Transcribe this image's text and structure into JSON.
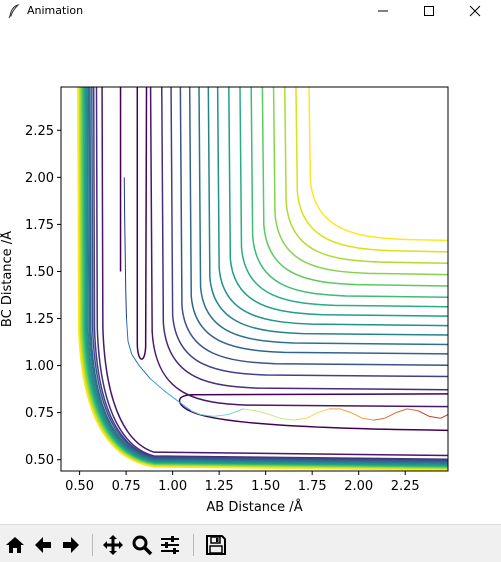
{
  "window": {
    "title": "Animation",
    "minimize_glyph": "—",
    "maximize_glyph": "☐",
    "close_glyph": "✕"
  },
  "toolbar": {
    "buttons": [
      {
        "name": "home",
        "icon": "home-icon"
      },
      {
        "name": "back",
        "icon": "back-arrow-icon"
      },
      {
        "name": "forward",
        "icon": "forward-arrow-icon"
      },
      {
        "name": "pan",
        "icon": "pan-move-icon"
      },
      {
        "name": "zoom",
        "icon": "zoom-magnifier-icon"
      },
      {
        "name": "configure-subplots",
        "icon": "subplots-sliders-icon"
      },
      {
        "name": "save",
        "icon": "save-floppy-icon"
      }
    ]
  },
  "chart_data": {
    "type": "contour",
    "xlabel": "AB Distance /Å",
    "ylabel": "BC Distance /Å",
    "xlim": [
      0.4,
      2.48
    ],
    "ylim": [
      0.44,
      2.48
    ],
    "x_ticks": [
      0.5,
      0.75,
      1.0,
      1.25,
      1.5,
      1.75,
      2.0,
      2.25
    ],
    "x_tick_labels": [
      "0.50",
      "0.75",
      "1.00",
      "1.25",
      "1.50",
      "1.75",
      "2.00",
      "2.25"
    ],
    "y_ticks": [
      0.5,
      0.75,
      1.0,
      1.25,
      1.5,
      1.75,
      2.0,
      2.25
    ],
    "y_tick_labels": [
      "0.50",
      "0.75",
      "1.00",
      "1.25",
      "1.50",
      "1.75",
      "2.00",
      "2.25"
    ],
    "grid": false,
    "colormap": "viridis",
    "contour_levels": [
      {
        "ax": 0.72,
        "ay": 0.6,
        "corner_x": 0.84,
        "corner_y": 1.03,
        "asym_y": 0.85,
        "asym_x": 0.83,
        "color": "#440154"
      },
      {
        "ax": 0.62,
        "ay": 0.52,
        "corner_x": 0.9,
        "corner_y": 0.93,
        "asym_y": 0.79,
        "asym_x": 0.88,
        "color": "#48186a"
      },
      {
        "ax": 0.59,
        "ay": 0.5,
        "corner_x": 0.96,
        "corner_y": 0.98,
        "asym_y": 0.88,
        "asym_x": 0.94,
        "color": "#472d7b"
      },
      {
        "ax": 0.575,
        "ay": 0.495,
        "corner_x": 1.0,
        "corner_y": 1.02,
        "asym_y": 0.95,
        "asym_x": 0.99,
        "color": "#424086"
      },
      {
        "ax": 0.565,
        "ay": 0.49,
        "corner_x": 1.05,
        "corner_y": 1.07,
        "asym_y": 1.01,
        "asym_x": 1.04,
        "color": "#3b528b"
      },
      {
        "ax": 0.555,
        "ay": 0.485,
        "corner_x": 1.1,
        "corner_y": 1.12,
        "asym_y": 1.07,
        "asym_x": 1.09,
        "color": "#33638d"
      },
      {
        "ax": 0.548,
        "ay": 0.48,
        "corner_x": 1.15,
        "corner_y": 1.17,
        "asym_y": 1.12,
        "asym_x": 1.14,
        "color": "#2c728e"
      },
      {
        "ax": 0.54,
        "ay": 0.475,
        "corner_x": 1.2,
        "corner_y": 1.22,
        "asym_y": 1.17,
        "asym_x": 1.19,
        "color": "#26828e"
      },
      {
        "ax": 0.533,
        "ay": 0.47,
        "corner_x": 1.25,
        "corner_y": 1.27,
        "asym_y": 1.22,
        "asym_x": 1.24,
        "color": "#21918c"
      },
      {
        "ax": 0.527,
        "ay": 0.465,
        "corner_x": 1.31,
        "corner_y": 1.32,
        "asym_y": 1.27,
        "asym_x": 1.3,
        "color": "#1fa088"
      },
      {
        "ax": 0.52,
        "ay": 0.46,
        "corner_x": 1.37,
        "corner_y": 1.38,
        "asym_y": 1.32,
        "asym_x": 1.36,
        "color": "#28ae80"
      },
      {
        "ax": 0.515,
        "ay": 0.457,
        "corner_x": 1.43,
        "corner_y": 1.44,
        "asym_y": 1.37,
        "asym_x": 1.42,
        "color": "#3fbc73"
      },
      {
        "ax": 0.51,
        "ay": 0.454,
        "corner_x": 1.49,
        "corner_y": 1.5,
        "asym_y": 1.43,
        "asym_x": 1.48,
        "color": "#5ec962"
      },
      {
        "ax": 0.505,
        "ay": 0.451,
        "corner_x": 1.55,
        "corner_y": 1.56,
        "asym_y": 1.49,
        "asym_x": 1.54,
        "color": "#84d44b"
      },
      {
        "ax": 0.5,
        "ay": 0.448,
        "corner_x": 1.61,
        "corner_y": 1.62,
        "asym_y": 1.55,
        "asym_x": 1.6,
        "color": "#addc30"
      },
      {
        "ax": 0.495,
        "ay": 0.445,
        "corner_x": 1.68,
        "corner_y": 1.68,
        "asym_y": 1.61,
        "asym_x": 1.66,
        "color": "#d8e219"
      },
      {
        "ax": 0.49,
        "ay": 0.442,
        "corner_x": 1.75,
        "corner_y": 1.74,
        "asym_y": 1.67,
        "asym_x": 1.73,
        "color": "#fde725"
      }
    ],
    "trajectory": {
      "description": "reactive trajectory colored by time (viridis to plasma)",
      "points": [
        [
          0.74,
          2.0
        ],
        [
          0.742,
          1.8
        ],
        [
          0.745,
          1.6
        ],
        [
          0.748,
          1.4
        ],
        [
          0.752,
          1.25
        ],
        [
          0.76,
          1.13
        ],
        [
          0.78,
          1.06
        ],
        [
          0.82,
          1.0
        ],
        [
          0.88,
          0.93
        ],
        [
          0.95,
          0.87
        ],
        [
          1.03,
          0.81
        ],
        [
          1.1,
          0.76
        ],
        [
          1.15,
          0.74
        ],
        [
          1.22,
          0.73
        ],
        [
          1.3,
          0.74
        ],
        [
          1.38,
          0.77
        ],
        [
          1.45,
          0.76
        ],
        [
          1.52,
          0.74
        ],
        [
          1.58,
          0.72
        ],
        [
          1.65,
          0.71
        ],
        [
          1.72,
          0.72
        ],
        [
          1.78,
          0.75
        ],
        [
          1.84,
          0.77
        ],
        [
          1.9,
          0.77
        ],
        [
          1.96,
          0.75
        ],
        [
          2.02,
          0.72
        ],
        [
          2.08,
          0.71
        ],
        [
          2.14,
          0.72
        ],
        [
          2.2,
          0.75
        ],
        [
          2.26,
          0.77
        ],
        [
          2.32,
          0.76
        ],
        [
          2.38,
          0.73
        ],
        [
          2.44,
          0.72
        ],
        [
          2.48,
          0.74
        ]
      ],
      "colors": [
        "#1f3b8a",
        "#2b6fb8",
        "#3fa3d9",
        "#7fd6c4",
        "#c9e68e",
        "#f5d35a",
        "#f1a13a",
        "#e36a2e",
        "#c93a25"
      ]
    }
  }
}
